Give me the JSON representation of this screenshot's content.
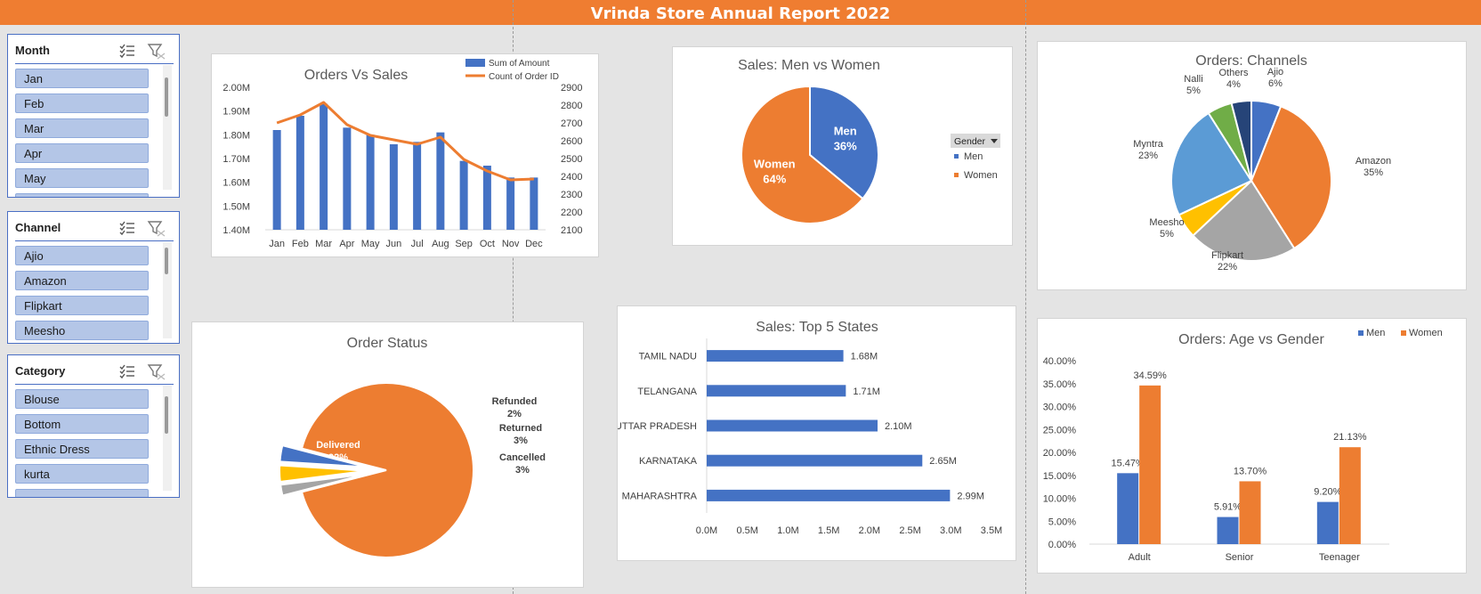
{
  "header": {
    "title": "Vrinda Store Annual Report 2022"
  },
  "colors": {
    "banner": "#ef7d31",
    "blue": "#4472c4",
    "orange": "#ed7d31",
    "gray": "#a5a5a5",
    "yellow": "#ffc000",
    "lightblue": "#5b9bd5",
    "green": "#70ad47",
    "navy": "#264478",
    "slicer_item": "#b4c6e7"
  },
  "slicers": [
    {
      "title": "Month",
      "items": [
        "Jan",
        "Feb",
        "Mar",
        "Apr",
        "May"
      ],
      "icons": [
        "multi-select-icon",
        "clear-filter-icon"
      ]
    },
    {
      "title": "Channel",
      "items": [
        "Ajio",
        "Amazon",
        "Flipkart",
        "Meesho"
      ],
      "icons": [
        "multi-select-icon",
        "clear-filter-icon"
      ]
    },
    {
      "title": "Category",
      "items": [
        "Blouse",
        "Bottom",
        "Ethnic Dress",
        "kurta"
      ],
      "icons": [
        "multi-select-icon",
        "clear-filter-icon"
      ]
    }
  ],
  "chart_data": [
    {
      "id": "orders_vs_sales",
      "type": "bar+line",
      "title": "Orders Vs Sales",
      "categories": [
        "Jan",
        "Feb",
        "Mar",
        "Apr",
        "May",
        "Jun",
        "Jul",
        "Aug",
        "Sep",
        "Oct",
        "Nov",
        "Dec"
      ],
      "series": [
        {
          "name": "Sum of Amount",
          "type": "bar",
          "axis": "left",
          "values": [
            1.82,
            1.88,
            1.93,
            1.83,
            1.8,
            1.76,
            1.77,
            1.81,
            1.69,
            1.67,
            1.62,
            1.62
          ]
        },
        {
          "name": "Count of Order ID",
          "type": "line",
          "axis": "right",
          "values": [
            2700,
            2745,
            2815,
            2690,
            2630,
            2605,
            2580,
            2620,
            2495,
            2430,
            2380,
            2385
          ]
        }
      ],
      "yleft_ticks": [
        "2.00M",
        "1.90M",
        "1.80M",
        "1.70M",
        "1.60M",
        "1.50M",
        "1.40M"
      ],
      "yleft_lim": [
        1.4,
        2.0
      ],
      "yright_ticks": [
        "2900",
        "2800",
        "2700",
        "2600",
        "2500",
        "2400",
        "2300",
        "2200",
        "2100"
      ],
      "yright_lim": [
        2100,
        2900
      ],
      "legend": "top-right"
    },
    {
      "id": "men_vs_women",
      "type": "pie",
      "title": "Sales: Men vs Women",
      "legend_title": "Gender",
      "slices": [
        {
          "name": "Men",
          "value": 36,
          "label": "36%"
        },
        {
          "name": "Women",
          "value": 64,
          "label": "64%"
        }
      ],
      "legend": "right"
    },
    {
      "id": "channels",
      "type": "pie",
      "title": "Orders: Channels",
      "slices": [
        {
          "name": "Ajio",
          "value": 6,
          "label": "6%"
        },
        {
          "name": "Amazon",
          "value": 35,
          "label": "35%"
        },
        {
          "name": "Flipkart",
          "value": 22,
          "label": "22%"
        },
        {
          "name": "Meesho",
          "value": 5,
          "label": "5%"
        },
        {
          "name": "Myntra",
          "value": 23,
          "label": "23%"
        },
        {
          "name": "Nalli",
          "value": 5,
          "label": "5%"
        },
        {
          "name": "Others",
          "value": 4,
          "label": "4%"
        }
      ]
    },
    {
      "id": "order_status",
      "type": "pie",
      "title": "Order Status",
      "slices": [
        {
          "name": "Delivered",
          "value": 92,
          "label": "92%"
        },
        {
          "name": "Refunded",
          "value": 2,
          "label": "2%"
        },
        {
          "name": "Returned",
          "value": 3,
          "label": "3%"
        },
        {
          "name": "Cancelled",
          "value": 3,
          "label": "3%"
        }
      ]
    },
    {
      "id": "top_states",
      "type": "bar",
      "orientation": "horizontal",
      "title": "Sales: Top 5 States",
      "categories": [
        "TAMIL NADU",
        "TELANGANA",
        "UTTAR PRADESH",
        "KARNATAKA",
        "MAHARASHTRA"
      ],
      "values": [
        1.68,
        1.71,
        2.1,
        2.65,
        2.99
      ],
      "labels": [
        "1.68M",
        "1.71M",
        "2.10M",
        "2.65M",
        "2.99M"
      ],
      "x_ticks": [
        "0.0M",
        "0.5M",
        "1.0M",
        "1.5M",
        "2.0M",
        "2.5M",
        "3.0M",
        "3.5M"
      ],
      "xlim": [
        0,
        3.5
      ]
    },
    {
      "id": "age_vs_gender",
      "type": "bar",
      "title": "Orders: Age vs Gender",
      "categories": [
        "Adult",
        "Senior",
        "Teenager"
      ],
      "series": [
        {
          "name": "Men",
          "values": [
            15.47,
            5.91,
            9.2
          ],
          "labels": [
            "15.47%",
            "5.91%",
            "9.20%"
          ]
        },
        {
          "name": "Women",
          "values": [
            34.59,
            13.7,
            21.13
          ],
          "labels": [
            "34.59%",
            "13.70%",
            "21.13%"
          ]
        }
      ],
      "y_ticks": [
        "40.00%",
        "35.00%",
        "30.00%",
        "25.00%",
        "20.00%",
        "15.00%",
        "10.00%",
        "5.00%",
        "0.00%"
      ],
      "ylim": [
        0,
        40
      ],
      "legend": "top-right"
    }
  ]
}
